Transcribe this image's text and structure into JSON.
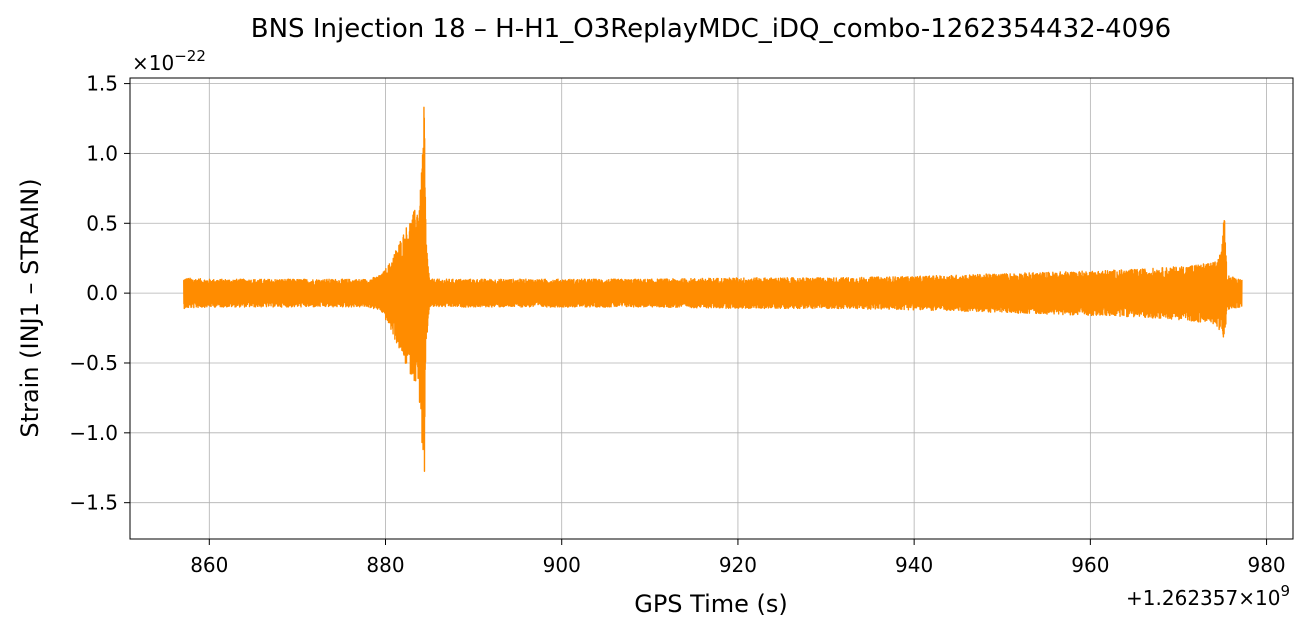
{
  "chart_data": {
    "type": "line",
    "title": "BNS Injection 18 – H-H1_O3ReplayMDC_iDQ_combo-1262354432-4096",
    "xlabel": "GPS Time (s)",
    "ylabel": "Strain (INJ1 – STRAIN)",
    "x_offset_text": "+1.262357×10",
    "x_offset_exp": "9",
    "y_scale_text": "×10",
    "y_scale_exp": "−22",
    "xlim": [
      851,
      983
    ],
    "ylim": [
      -1.76,
      1.54
    ],
    "x_ticks": [
      860,
      880,
      900,
      920,
      940,
      960,
      980
    ],
    "x_tick_labels": [
      "860",
      "880",
      "900",
      "920",
      "940",
      "960",
      "980"
    ],
    "y_ticks": [
      1.5,
      1.0,
      0.5,
      0.0,
      -0.5,
      -1.0,
      -1.5
    ],
    "y_tick_labels": [
      "1.5",
      "1.0",
      "0.5",
      "0.0",
      "−0.5",
      "−1.0",
      "−1.5"
    ],
    "grid": true,
    "line_color": "#ff8c00",
    "series": [
      {
        "x_start": 857.1,
        "x_end": 977.2,
        "envelope_x": [
          857.1,
          860,
          870,
          878,
          879.5,
          880.5,
          881.5,
          882.5,
          883.5,
          884.0,
          884.4,
          884.6,
          885,
          890,
          900,
          910,
          920,
          930,
          940,
          950,
          960,
          965,
          970,
          974,
          974.9,
          975.2,
          975.5,
          976,
          977.2
        ],
        "envelope_upper": [
          0.11,
          0.1,
          0.1,
          0.1,
          0.13,
          0.22,
          0.36,
          0.5,
          0.62,
          0.75,
          1.39,
          0.4,
          0.1,
          0.1,
          0.1,
          0.1,
          0.11,
          0.11,
          0.12,
          0.14,
          0.16,
          0.17,
          0.19,
          0.22,
          0.3,
          0.58,
          0.14,
          0.12,
          0.1
        ],
        "envelope_lower": [
          -0.11,
          -0.1,
          -0.1,
          -0.1,
          -0.13,
          -0.25,
          -0.4,
          -0.55,
          -0.65,
          -0.85,
          -1.62,
          -0.4,
          -0.1,
          -0.1,
          -0.1,
          -0.1,
          -0.11,
          -0.11,
          -0.12,
          -0.14,
          -0.16,
          -0.17,
          -0.19,
          -0.22,
          -0.28,
          -0.38,
          -0.13,
          -0.11,
          -0.1
        ]
      }
    ]
  }
}
